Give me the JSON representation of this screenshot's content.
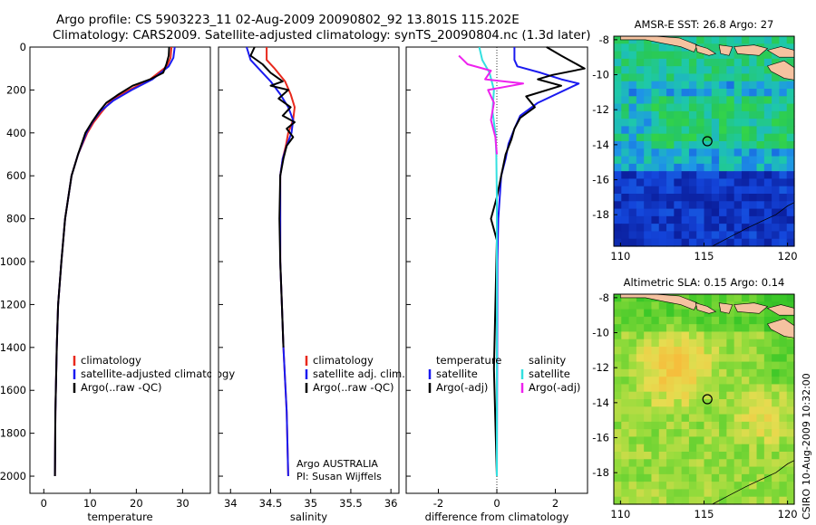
{
  "header": {
    "line1": "Argo profile: CS 5903223_11 02-Aug-2009 20090802_92 13.801S 115.202E",
    "line2": "Climatology: CARS2009. Satellite-adjusted climatology: synTS_20090804.nc (1.3d later)"
  },
  "footer_note": "CSIRO 10-Aug-2009 10:32:00",
  "colors": {
    "red": "#e8281c",
    "blue": "#1a1af0",
    "black": "#000000",
    "cyan": "#33e0e0",
    "magenta": "#ee22ee",
    "land": "#f5c2a0"
  },
  "chart_data": [
    {
      "type": "line",
      "id": "temperature",
      "xlabel": "temperature",
      "xlim": [
        -3,
        36
      ],
      "ylim": [
        2080,
        0
      ],
      "xticks": [
        0,
        10,
        20,
        30
      ],
      "yticks": [
        0,
        200,
        400,
        600,
        800,
        1000,
        1200,
        1400,
        1600,
        1800,
        2000
      ],
      "legend": [
        "climatology",
        "satellite-adjusted climatology",
        "Argo(..raw -QC)"
      ],
      "series": [
        {
          "name": "climatology",
          "color": "red",
          "x": [
            27.6,
            27.4,
            26.6,
            23.0,
            18.5,
            14.5,
            12.6,
            10.8,
            9.4,
            7.4,
            6.0,
            4.6,
            3.8,
            3.1,
            2.8,
            2.5,
            2.4
          ],
          "y": [
            0,
            50,
            90,
            150,
            200,
            250,
            300,
            350,
            400,
            500,
            600,
            800,
            1000,
            1200,
            1400,
            1700,
            2000
          ]
        },
        {
          "name": "satellite-adjusted climatology",
          "color": "blue",
          "x": [
            28.3,
            28.0,
            27.0,
            23.5,
            19.0,
            15.0,
            12.2,
            10.5,
            9.2,
            7.4,
            6.0,
            4.6,
            3.8,
            3.1,
            2.8,
            2.5,
            2.4
          ],
          "y": [
            0,
            50,
            90,
            150,
            200,
            250,
            300,
            350,
            400,
            500,
            600,
            800,
            1000,
            1200,
            1400,
            1700,
            2000
          ]
        },
        {
          "name": "Argo(..raw -QC)",
          "color": "black",
          "x": [
            27.1,
            27.0,
            26.5,
            25.8,
            23.0,
            19.2,
            16.2,
            13.5,
            12.0,
            10.4,
            9.0,
            7.4,
            6.0,
            4.6,
            3.8,
            3.1,
            2.8,
            2.5,
            2.4
          ],
          "y": [
            0,
            40,
            80,
            120,
            150,
            180,
            220,
            260,
            300,
            350,
            400,
            500,
            600,
            800,
            1000,
            1200,
            1400,
            1700,
            2000
          ]
        }
      ]
    },
    {
      "type": "line",
      "id": "salinity",
      "xlabel": "salinity",
      "xlim": [
        33.85,
        36.1
      ],
      "ylim": [
        2080,
        0
      ],
      "xticks": [
        34,
        34.5,
        35,
        35.5,
        36
      ],
      "legend": [
        "climatology",
        "satellite adj. clim.",
        "Argo(..raw -QC)"
      ],
      "annotations": [
        "Argo AUSTRALIA",
        "PI: Susan Wijffels"
      ],
      "series": [
        {
          "name": "climatology",
          "color": "red",
          "x": [
            34.45,
            34.45,
            34.55,
            34.68,
            34.75,
            34.8,
            34.78,
            34.72,
            34.69,
            34.65,
            34.62,
            34.62,
            34.62,
            34.64,
            34.66,
            34.7,
            34.72
          ],
          "y": [
            0,
            60,
            100,
            160,
            220,
            280,
            340,
            400,
            460,
            520,
            600,
            800,
            1000,
            1200,
            1400,
            1700,
            2000
          ]
        },
        {
          "name": "satellite adj. clim.",
          "color": "blue",
          "x": [
            34.2,
            34.25,
            34.35,
            34.5,
            34.62,
            34.72,
            34.78,
            34.76,
            34.7,
            34.65,
            34.62,
            34.62,
            34.62,
            34.64,
            34.66,
            34.7,
            34.72
          ],
          "y": [
            0,
            60,
            100,
            160,
            220,
            280,
            340,
            400,
            460,
            520,
            600,
            800,
            1000,
            1200,
            1400,
            1700,
            2000
          ]
        },
        {
          "name": "Argo(..raw -QC)",
          "color": "black",
          "x": [
            34.3,
            34.25,
            34.4,
            34.5,
            34.65,
            34.5,
            34.72,
            34.6,
            34.75,
            34.65,
            34.8,
            34.7,
            34.78,
            34.7,
            34.66,
            34.62,
            34.61,
            34.62,
            34.64,
            34.66
          ],
          "y": [
            0,
            40,
            80,
            120,
            160,
            180,
            200,
            240,
            280,
            320,
            350,
            380,
            420,
            460,
            520,
            600,
            800,
            1000,
            1200,
            1400
          ]
        }
      ]
    },
    {
      "type": "line",
      "id": "difference",
      "xlabel": "difference from climatology",
      "xlim": [
        -3.1,
        3.1
      ],
      "ylim": [
        2080,
        0
      ],
      "xticks": [
        -2,
        0,
        2
      ],
      "legend": [
        "temperature",
        "satellite",
        "Argo(-adj)",
        "salinity",
        "satellite",
        "Argo(-adj)"
      ],
      "series": [
        {
          "name": "temperature satellite",
          "color": "blue",
          "x": [
            0.6,
            0.6,
            0.7,
            1.5,
            2.2,
            2.8,
            1.4,
            0.8,
            0.6,
            0.4,
            0.3,
            0.15,
            0.05,
            0.02,
            0.01,
            0.0
          ],
          "y": [
            0,
            60,
            90,
            120,
            150,
            170,
            260,
            320,
            380,
            450,
            520,
            600,
            800,
            1000,
            1500,
            2000
          ]
        },
        {
          "name": "temperature Argo(-adj)",
          "color": "black",
          "x": [
            1.7,
            2.2,
            2.6,
            3.0,
            1.9,
            1.4,
            2.2,
            1.0,
            1.3,
            0.8,
            0.6,
            0.5,
            0.3,
            0.15,
            0.0,
            -0.2,
            0.0,
            -0.1,
            0.0
          ],
          "y": [
            0,
            40,
            70,
            100,
            130,
            150,
            180,
            230,
            280,
            330,
            380,
            430,
            500,
            600,
            700,
            800,
            900,
            1500,
            2000
          ]
        },
        {
          "name": "salinity satellite",
          "color": "cyan",
          "x": [
            -0.6,
            -0.5,
            -0.25,
            -0.1,
            -0.15,
            -0.05,
            -0.02,
            0.0,
            0.0,
            0.0
          ],
          "y": [
            0,
            60,
            120,
            200,
            300,
            400,
            500,
            700,
            1200,
            2000
          ]
        },
        {
          "name": "salinity Argo(-adj)",
          "color": "magenta",
          "x": [
            -1.3,
            -1.0,
            -0.2,
            -0.4,
            0.9,
            -0.3,
            -0.1,
            -0.2,
            -0.05,
            0.0
          ],
          "y": [
            40,
            80,
            110,
            150,
            170,
            200,
            260,
            340,
            420,
            500
          ]
        }
      ]
    },
    {
      "type": "heatmap",
      "id": "sst_map",
      "title": "AMSR-E SST: 26.8 Argo: 27",
      "xlim": [
        109.6,
        120.4
      ],
      "ylim": [
        -19.8,
        -7.8
      ],
      "xticks": [
        110,
        115,
        120
      ],
      "yticks": [
        -8,
        -10,
        -12,
        -14,
        -16,
        -18
      ],
      "marker": {
        "lon": 115.202,
        "lat": -13.801
      }
    },
    {
      "type": "heatmap",
      "id": "sla_map",
      "title": "Altimetric SLA: 0.15 Argo: 0.14",
      "xlim": [
        109.6,
        120.4
      ],
      "ylim": [
        -19.8,
        -7.8
      ],
      "xticks": [
        110,
        115,
        120
      ],
      "yticks": [
        -8,
        -10,
        -12,
        -14,
        -16,
        -18
      ],
      "marker": {
        "lon": 115.202,
        "lat": -13.801
      }
    }
  ]
}
